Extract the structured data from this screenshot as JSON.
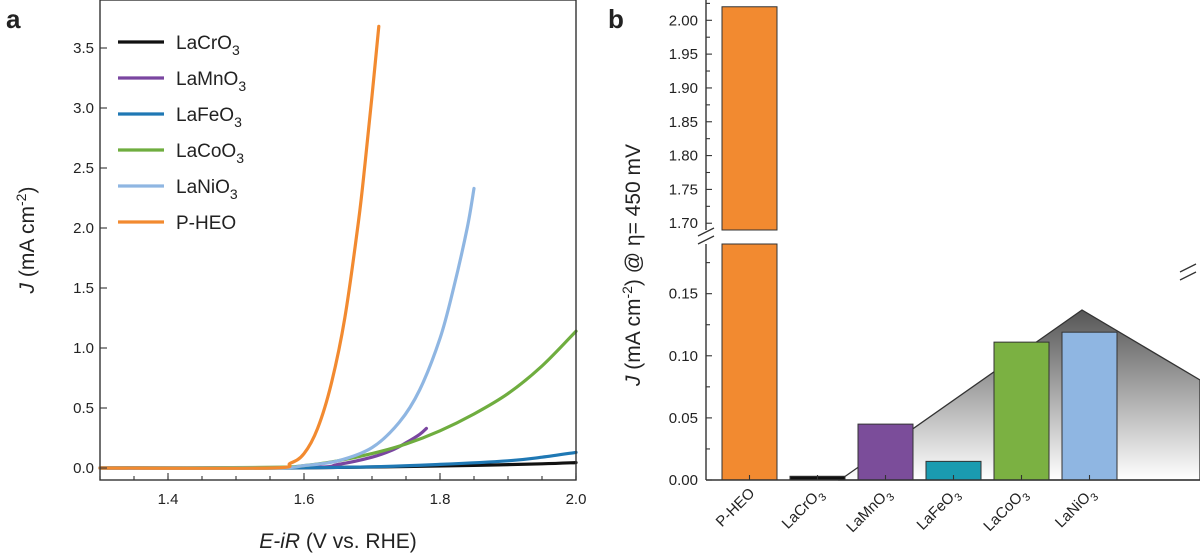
{
  "chart_data": [
    {
      "panel": "a",
      "type": "line",
      "xlabel": {
        "italic": "E-iR",
        "rest": " (V vs. RHE)"
      },
      "ylabel": {
        "italic": "J",
        "rest": " (mA cm",
        "sup": "-2",
        "close": ")"
      },
      "xlim": [
        1.3,
        2.0
      ],
      "ylim": [
        -0.1,
        3.9
      ],
      "xticks": [
        1.4,
        1.6,
        1.8,
        2.0
      ],
      "xtick_labels": [
        "1.4",
        "1.6",
        "1.8",
        "2.0"
      ],
      "yticks": [
        0.0,
        0.5,
        1.0,
        1.5,
        2.0,
        2.5,
        3.0,
        3.5
      ],
      "ytick_labels": [
        "0.0",
        "0.5",
        "1.0",
        "1.5",
        "2.0",
        "2.5",
        "3.0",
        "3.5"
      ],
      "legend_position": "top-left",
      "series": [
        {
          "name": "LaCrO",
          "sub": "3",
          "color": "#111111",
          "x": [
            1.3,
            1.55,
            1.65,
            1.75,
            1.85,
            1.95,
            2.0
          ],
          "y": [
            0.0,
            0.0,
            0.005,
            0.012,
            0.022,
            0.035,
            0.045
          ]
        },
        {
          "name": "LaMnO",
          "sub": "3",
          "color": "#7a46a0",
          "x": [
            1.3,
            1.6,
            1.65,
            1.7,
            1.73,
            1.75,
            1.77,
            1.78
          ],
          "y": [
            0.0,
            0.005,
            0.03,
            0.09,
            0.15,
            0.21,
            0.28,
            0.33
          ]
        },
        {
          "name": "LaFeO",
          "sub": "3",
          "color": "#1f78b4",
          "x": [
            1.3,
            1.55,
            1.7,
            1.8,
            1.9,
            1.95,
            2.0
          ],
          "y": [
            0.0,
            0.0,
            0.01,
            0.03,
            0.06,
            0.09,
            0.13
          ]
        },
        {
          "name": "LaCoO",
          "sub": "3",
          "color": "#6fad3f",
          "x": [
            1.3,
            1.55,
            1.6,
            1.65,
            1.7,
            1.75,
            1.8,
            1.85,
            1.9,
            1.95,
            2.0
          ],
          "y": [
            0.0,
            0.005,
            0.02,
            0.06,
            0.12,
            0.2,
            0.31,
            0.45,
            0.62,
            0.85,
            1.14
          ]
        },
        {
          "name": "LaNiO",
          "sub": "3",
          "color": "#8fb6e2",
          "x": [
            1.3,
            1.55,
            1.6,
            1.65,
            1.7,
            1.74,
            1.77,
            1.8,
            1.82,
            1.84,
            1.85
          ],
          "y": [
            0.0,
            0.0,
            0.02,
            0.06,
            0.17,
            0.38,
            0.65,
            1.08,
            1.5,
            2.0,
            2.33
          ]
        },
        {
          "name": "P-HEO",
          "sub": "",
          "color": "#f28a30",
          "x": [
            1.3,
            1.55,
            1.58,
            1.6,
            1.62,
            1.64,
            1.66,
            1.68,
            1.69,
            1.7,
            1.71
          ],
          "y": [
            0.0,
            0.0,
            0.04,
            0.12,
            0.33,
            0.7,
            1.25,
            2.05,
            2.55,
            3.1,
            3.68
          ]
        }
      ]
    },
    {
      "panel": "b",
      "type": "bar",
      "ylabel": {
        "italic": "J",
        "mid": " (mA cm",
        "sup": "-2",
        "tail": ") @ η= 450 mV"
      },
      "broken_axis": true,
      "lower_ylim": [
        0.0,
        0.19
      ],
      "upper_ylim": [
        1.69,
        2.03
      ],
      "lower_yticks": [
        0.0,
        0.05,
        0.1,
        0.15
      ],
      "lower_ytick_labels": [
        "0.00",
        "0.05",
        "0.10",
        "0.15"
      ],
      "upper_yticks": [
        1.7,
        1.75,
        1.8,
        1.85,
        1.9,
        1.95,
        2.0
      ],
      "upper_ytick_labels": [
        "1.70",
        "1.75",
        "1.80",
        "1.85",
        "1.90",
        "1.95",
        "2.00"
      ],
      "categories": [
        {
          "name": "P-HEO",
          "sub": ""
        },
        {
          "name": "LaCrO",
          "sub": "3"
        },
        {
          "name": "LaMnO",
          "sub": "3"
        },
        {
          "name": "LaFeO",
          "sub": "3"
        },
        {
          "name": "LaCoO",
          "sub": "3"
        },
        {
          "name": "LaNiO",
          "sub": "3"
        }
      ],
      "values": [
        2.02,
        0.003,
        0.045,
        0.015,
        0.111,
        0.119
      ],
      "colors": [
        "#f28a30",
        "#111111",
        "#7b4d9a",
        "#1a9bb0",
        "#7bb142",
        "#8fb6e2"
      ],
      "background_shape": "gray gradient triangle (volcano) behind LaMnO3–LaNiO3 bars"
    }
  ],
  "panel_labels": {
    "a": "a",
    "b": "b"
  }
}
